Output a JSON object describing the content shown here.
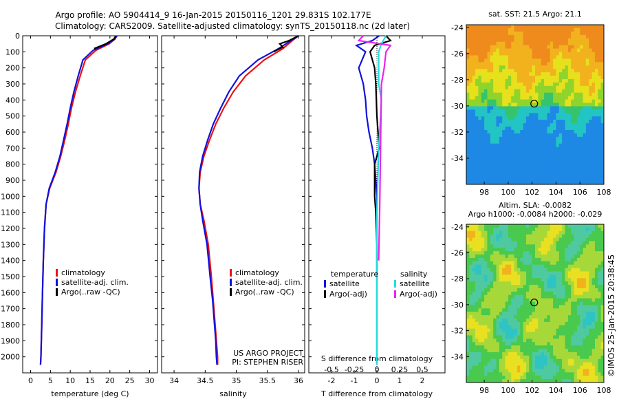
{
  "header": {
    "title_line1": "Argo profile: AO 5904414_9 16-Jan-2015 20150116_1201 29.831S 102.177E",
    "title_line2": "Climatology: CARS2009. Satellite-adjusted climatology: synTS_20150118.nc (2d later)"
  },
  "chart_data": [
    {
      "id": "temperature-profile",
      "type": "line",
      "xlabel": "temperature (deg C)",
      "xlim": [
        -2,
        32
      ],
      "ylim": [
        2100,
        0
      ],
      "xticks": [
        0,
        5,
        10,
        15,
        20,
        25,
        30
      ],
      "yticks": [
        0,
        100,
        200,
        300,
        400,
        500,
        600,
        700,
        800,
        900,
        1000,
        1100,
        1200,
        1300,
        1400,
        1500,
        1600,
        1700,
        1800,
        1900,
        2000
      ],
      "legend_position": "lower-center",
      "legend": [
        "climatology",
        "satellite-adj. clim.",
        "Argo(..raw -QC)"
      ],
      "series": [
        {
          "name": "climatology",
          "color": "#ee1111",
          "x": [
            21.7,
            21.3,
            19.8,
            16.5,
            13.8,
            12.5,
            11.3,
            10.3,
            9.5,
            8.6,
            7.6,
            6.4,
            4.8,
            3.9,
            3.5,
            3.2,
            3.0,
            2.8,
            2.7,
            2.6,
            2.5
          ],
          "y": [
            0,
            20,
            50,
            90,
            150,
            250,
            350,
            450,
            550,
            650,
            750,
            850,
            950,
            1050,
            1200,
            1400,
            1600,
            1800,
            1900,
            2000,
            2050
          ]
        },
        {
          "name": "satellite-adj. clim.",
          "color": "#1111dd",
          "x": [
            21.8,
            21.2,
            19.5,
            15.8,
            13.2,
            12.0,
            10.9,
            10.0,
            9.2,
            8.3,
            7.4,
            6.2,
            4.7,
            3.9,
            3.5,
            3.2,
            3.0,
            2.8,
            2.7,
            2.6,
            2.5
          ],
          "y": [
            0,
            20,
            50,
            90,
            150,
            250,
            350,
            450,
            550,
            650,
            750,
            850,
            950,
            1050,
            1200,
            1400,
            1600,
            1800,
            1900,
            2000,
            2050
          ]
        },
        {
          "name": "Argo(..raw -QC)",
          "color": "#000000",
          "x": [
            21.5,
            21.0,
            19.0,
            16.0
          ],
          "y": [
            0,
            20,
            50,
            80
          ]
        }
      ]
    },
    {
      "id": "salinity-profile",
      "type": "line",
      "xlabel": "salinity",
      "xlim": [
        33.8,
        36.1
      ],
      "ylim": [
        2100,
        0
      ],
      "xticks": [
        34,
        34.5,
        35,
        35.5,
        36
      ],
      "legend_position": "lower-right",
      "legend": [
        "climatology",
        "satellite-adj. clim.",
        "Argo(..raw -QC)"
      ],
      "annotation": [
        "US ARGO PROJECT",
        "PI: STEPHEN RISER"
      ],
      "series": [
        {
          "name": "climatology",
          "color": "#ee1111",
          "x": [
            36.0,
            35.9,
            35.75,
            35.45,
            35.15,
            34.95,
            34.8,
            34.67,
            34.57,
            34.48,
            34.42,
            34.4,
            34.42,
            34.48,
            34.55,
            34.6,
            34.63,
            34.66,
            34.68,
            34.7,
            34.7
          ],
          "y": [
            0,
            30,
            80,
            150,
            250,
            350,
            450,
            550,
            650,
            750,
            850,
            950,
            1050,
            1150,
            1300,
            1500,
            1650,
            1800,
            1900,
            2000,
            2050
          ]
        },
        {
          "name": "satellite-adj. clim.",
          "color": "#1111dd",
          "x": [
            36.0,
            35.88,
            35.68,
            35.35,
            35.05,
            34.88,
            34.75,
            34.63,
            34.54,
            34.46,
            34.41,
            34.4,
            34.42,
            34.46,
            34.53,
            34.58,
            34.62,
            34.65,
            34.67,
            34.68,
            34.69
          ],
          "y": [
            0,
            30,
            80,
            150,
            250,
            350,
            450,
            550,
            650,
            750,
            850,
            950,
            1050,
            1150,
            1300,
            1500,
            1650,
            1800,
            1900,
            2000,
            2050
          ]
        },
        {
          "name": "Argo(..raw -QC)",
          "color": "#000000",
          "x": [
            36.0,
            35.85,
            35.7,
            35.75,
            35.6
          ],
          "y": [
            0,
            30,
            50,
            70,
            100
          ]
        }
      ]
    },
    {
      "id": "difference-profile",
      "type": "line",
      "xlabel": "T difference from climatology",
      "xlabel_top": "S difference from climatology",
      "xlim": [
        -3,
        3
      ],
      "ylim": [
        2100,
        0
      ],
      "xticks": [
        -2,
        -1,
        0,
        1,
        2
      ],
      "xticks_top": [
        -0.5,
        -0.25,
        0,
        0.25,
        0.5
      ],
      "xtick_labels_top": [
        "-0.5",
        "-0.25",
        "0",
        "0.25",
        "0.5"
      ],
      "legend_position": "lower-center",
      "legend_temperature_header": "temperature",
      "legend_salinity_header": "salinity",
      "legend": [
        "satellite",
        "Argo(-adj)",
        "satellite",
        "Argo(-adj)"
      ],
      "series": [
        {
          "name": "satellite",
          "group": "temperature",
          "color": "#1111dd",
          "x": [
            0.1,
            -0.2,
            -0.9,
            -0.5,
            -0.8,
            -0.6,
            -0.5,
            -0.45,
            -0.35,
            -0.2,
            -0.1,
            -0.05,
            0,
            0,
            0,
            0,
            0
          ],
          "y": [
            0,
            30,
            60,
            100,
            200,
            300,
            400,
            500,
            600,
            700,
            800,
            900,
            1000,
            1200,
            1500,
            1800,
            2050
          ]
        },
        {
          "name": "Argo(-adj)",
          "group": "temperature",
          "color": "#000000",
          "x": [
            0.4,
            0.6,
            -0.1,
            -0.3,
            -0.1,
            -0.05,
            0,
            0.1,
            -0.1,
            -0.1,
            -0.05,
            0,
            0
          ],
          "y": [
            0,
            30,
            60,
            100,
            200,
            300,
            500,
            700,
            800,
            1000,
            1100,
            1300,
            1500
          ]
        },
        {
          "name": "satellite",
          "group": "salinity",
          "color": "#22dddd",
          "x": [
            0.1,
            0.05,
            0.02,
            0.02,
            0.02,
            0.05,
            0.04,
            0.03,
            0.02,
            0.01,
            0.0,
            0.0,
            0.0,
            0.0
          ],
          "y": [
            0,
            50,
            100,
            200,
            300,
            400,
            500,
            600,
            700,
            900,
            1100,
            1300,
            1600,
            2050
          ]
        },
        {
          "name": "Argo(-adj)",
          "group": "salinity",
          "color": "#ee22ee",
          "x": [
            -0.15,
            -0.2,
            0.15,
            0.1,
            0.08,
            0.05,
            0.04,
            0.03,
            0.02
          ],
          "y": [
            0,
            30,
            60,
            100,
            200,
            300,
            700,
            1100,
            1400
          ]
        }
      ]
    },
    {
      "id": "sst-map",
      "type": "heatmap",
      "title": "sat. SST: 21.5  Argo: 21.1",
      "xlim": [
        96.5,
        108
      ],
      "ylim": [
        -36,
        -23.8
      ],
      "xticks": [
        98,
        100,
        102,
        104,
        106,
        108
      ],
      "yticks": [
        -24,
        -26,
        -28,
        -30,
        -32,
        -34
      ],
      "marker": {
        "lon": 102.177,
        "lat": -29.831
      },
      "colors": [
        "#1e88e5",
        "#23c4c4",
        "#35c46b",
        "#8fd42c",
        "#e7e01c",
        "#f2b21e",
        "#ef8b1d"
      ]
    },
    {
      "id": "sla-map",
      "type": "heatmap",
      "title": "Altim. SLA: -0.0082",
      "subtitle": "Argo h1000: -0.0084 h2000: -0.029",
      "xlim": [
        96.5,
        108
      ],
      "ylim": [
        -36,
        -23.8
      ],
      "xticks": [
        98,
        100,
        102,
        104,
        106,
        108
      ],
      "yticks": [
        -24,
        -26,
        -28,
        -30,
        -32,
        -34
      ],
      "marker": {
        "lon": 102.177,
        "lat": -29.831
      },
      "colors": [
        "#2ec4c4",
        "#4fc9a0",
        "#49c94d",
        "#a7d83a",
        "#e9e022",
        "#f2b21e",
        "#ee8c1e"
      ]
    }
  ],
  "footer": {
    "stamp": "©IMOS 25-Jan-2015 20:38:45"
  }
}
